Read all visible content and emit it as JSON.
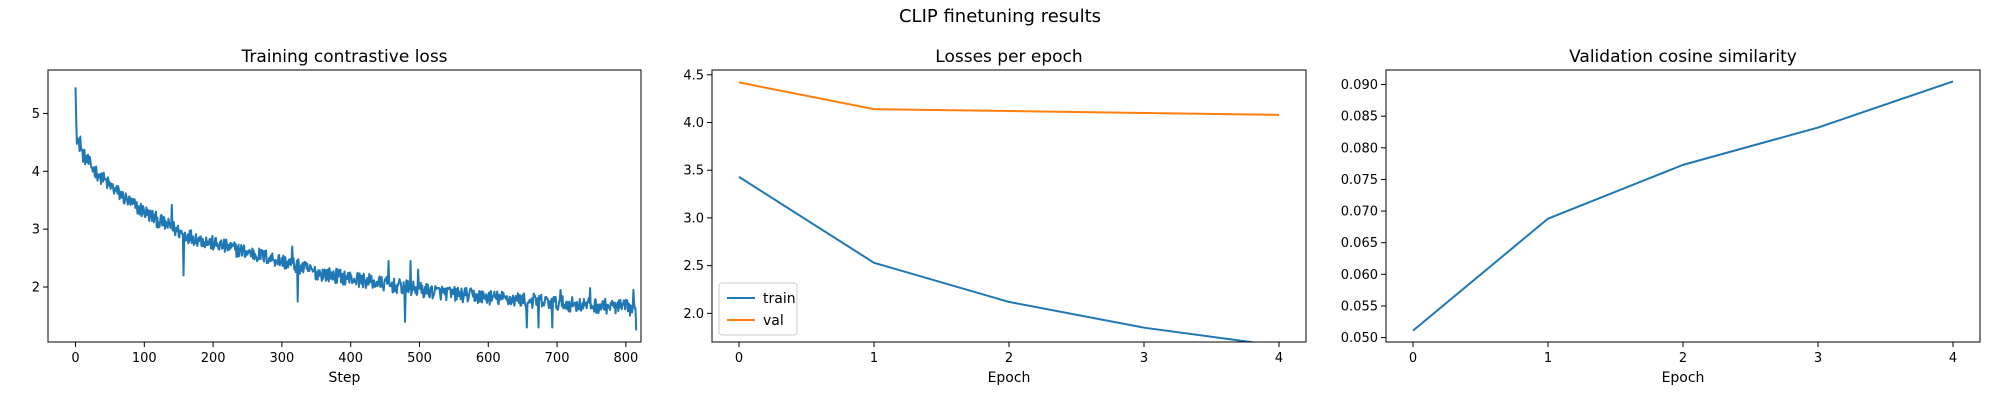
{
  "figure": {
    "title": "CLIP finetuning results"
  },
  "colors": {
    "blue": "#1f77b4",
    "orange": "#ff7f0e",
    "axis": "#000000",
    "legend_border": "#cccccc"
  },
  "chart_data": [
    {
      "type": "line",
      "title": "Training contrastive loss",
      "xlabel": "Step",
      "ylabel": "",
      "xlim": [
        -40,
        822
      ],
      "ylim": [
        1.05,
        5.75
      ],
      "xticks": [
        0,
        100,
        200,
        300,
        400,
        500,
        600,
        700,
        800
      ],
      "yticks": [
        2,
        3,
        4,
        5
      ],
      "grid": false,
      "series": [
        {
          "color": "#1f77b4",
          "x_start": 0,
          "x_step": 1,
          "anchors": [
            [
              0,
              5.45
            ],
            [
              2,
              4.6
            ],
            [
              10,
              4.3
            ],
            [
              25,
              4.05
            ],
            [
              50,
              3.75
            ],
            [
              80,
              3.45
            ],
            [
              120,
              3.15
            ],
            [
              160,
              2.9
            ],
            [
              200,
              2.75
            ],
            [
              250,
              2.6
            ],
            [
              300,
              2.45
            ],
            [
              350,
              2.25
            ],
            [
              400,
              2.15
            ],
            [
              450,
              2.05
            ],
            [
              500,
              1.95
            ],
            [
              550,
              1.88
            ],
            [
              600,
              1.82
            ],
            [
              650,
              1.78
            ],
            [
              700,
              1.72
            ],
            [
              750,
              1.68
            ],
            [
              800,
              1.65
            ],
            [
              815,
              1.6
            ]
          ],
          "noise_amplitude": 0.13,
          "spikes": [
            [
              5,
              4.5
            ],
            [
              7,
              4.6
            ],
            [
              12,
              4.35
            ],
            [
              36,
              3.95
            ],
            [
              98,
              3.4
            ],
            [
              140,
              3.42
            ],
            [
              157,
              2.2
            ],
            [
              315,
              2.7
            ],
            [
              323,
              1.75
            ],
            [
              455,
              2.45
            ],
            [
              479,
              1.4
            ],
            [
              487,
              2.45
            ],
            [
              498,
              2.3
            ],
            [
              656,
              1.3
            ],
            [
              673,
              1.3
            ],
            [
              693,
              1.3
            ],
            [
              705,
              1.95
            ],
            [
              748,
              1.98
            ],
            [
              811,
              1.95
            ],
            [
              815,
              1.25
            ]
          ]
        }
      ]
    },
    {
      "type": "line",
      "title": "Losses per epoch",
      "xlabel": "Epoch",
      "ylabel": "",
      "xlim": [
        -0.2,
        4.2
      ],
      "ylim": [
        1.7,
        4.55
      ],
      "xticks": [
        0,
        1,
        2,
        3,
        4
      ],
      "yticks": [
        2.0,
        2.5,
        3.0,
        3.5,
        4.0,
        4.5
      ],
      "grid": false,
      "legend": {
        "position": "lower-left"
      },
      "series": [
        {
          "name": "train",
          "color": "#1f77b4",
          "x": [
            0,
            1,
            2,
            3,
            4
          ],
          "y": [
            3.43,
            2.53,
            2.12,
            1.85,
            1.66
          ]
        },
        {
          "name": "val",
          "color": "#ff7f0e",
          "x": [
            0,
            1,
            2,
            3,
            4
          ],
          "y": [
            4.42,
            4.14,
            4.12,
            4.1,
            4.08
          ]
        }
      ]
    },
    {
      "type": "line",
      "title": "Validation cosine similarity",
      "xlabel": "Epoch",
      "ylabel": "",
      "xlim": [
        -0.2,
        4.2
      ],
      "ylim": [
        0.0493,
        0.0923
      ],
      "xticks": [
        0,
        1,
        2,
        3,
        4
      ],
      "yticks": [
        0.05,
        0.055,
        0.06,
        0.065,
        0.07,
        0.075,
        0.08,
        0.085,
        0.09
      ],
      "ytick_labels": [
        "0.050",
        "0.055",
        "0.060",
        "0.065",
        "0.070",
        "0.075",
        "0.080",
        "0.085",
        "0.090"
      ],
      "grid": false,
      "series": [
        {
          "color": "#1f77b4",
          "x": [
            0,
            1,
            2,
            3,
            4
          ],
          "y": [
            0.0511,
            0.0688,
            0.0773,
            0.0832,
            0.0905
          ]
        }
      ]
    }
  ]
}
